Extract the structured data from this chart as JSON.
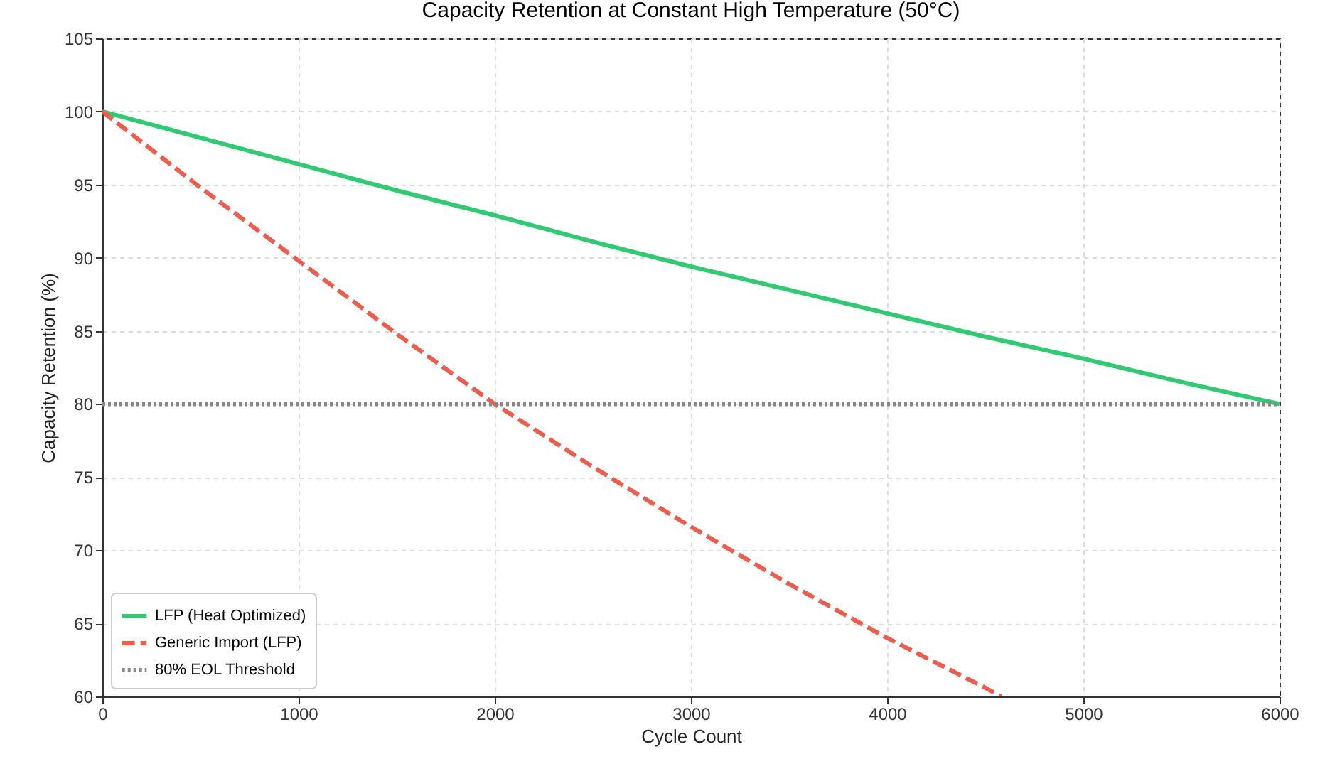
{
  "chart_data": {
    "type": "line",
    "title": "Capacity Retention at Constant High Temperature (50°C)",
    "xlabel": "Cycle Count",
    "ylabel": "Capacity Retention (%)",
    "x": [
      0,
      500,
      1000,
      1500,
      2000,
      2500,
      3000,
      3500,
      4000,
      4500,
      5000,
      5500,
      6000
    ],
    "series": [
      {
        "name": "LFP (Heat Optimized)",
        "color": "#2ecc71",
        "line_style": "solid",
        "values": [
          100,
          98.2,
          96.4,
          94.6,
          92.9,
          91.1,
          89.4,
          87.8,
          86.2,
          84.6,
          83.1,
          81.5,
          80
        ]
      },
      {
        "name": "Generic Import (LFP)",
        "color": "#f05b4b",
        "line_style": "dashed",
        "x": [
          0,
          500,
          1000,
          1500,
          2000,
          2500,
          3000,
          3500,
          4000,
          4500,
          4580
        ],
        "values": [
          100,
          94.8,
          89.8,
          84.8,
          80,
          75.7,
          71.6,
          67.7,
          64,
          60.6,
          60
        ]
      }
    ],
    "ref_lines": [
      {
        "axis": "y",
        "value": 80,
        "label": "80% EOL Threshold",
        "color": "#888888",
        "line_style": "dotted"
      }
    ],
    "xlim": [
      0,
      6000
    ],
    "xticks": [
      0,
      1000,
      2000,
      3000,
      4000,
      5000,
      6000
    ],
    "ylim": [
      60,
      105
    ],
    "yticks": [
      60,
      65,
      70,
      75,
      80,
      85,
      90,
      95,
      100,
      105
    ],
    "grid": true,
    "legend": "bottom left"
  }
}
